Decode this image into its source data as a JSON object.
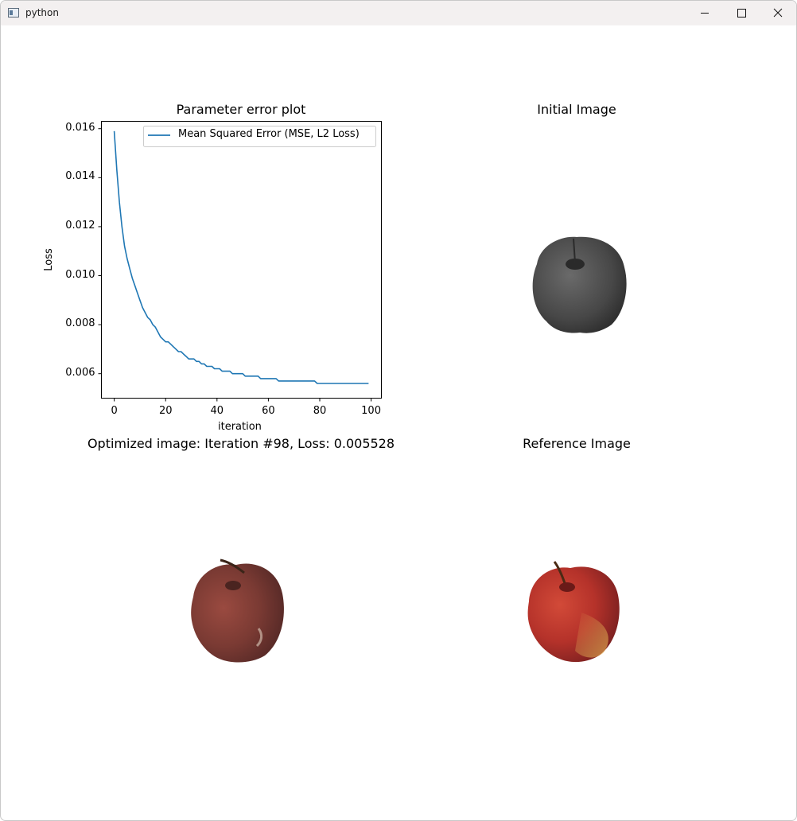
{
  "window": {
    "title": "python",
    "icons": [
      "app-icon",
      "minimize-icon",
      "maximize-icon",
      "close-icon"
    ]
  },
  "plots": {
    "loss_title": "Parameter error plot",
    "initial_title": "Initial Image",
    "optimized_title": "Optimized image: Iteration #98, Loss: 0.005528",
    "reference_title": "Reference Image"
  },
  "chart_data": {
    "type": "line",
    "title": "Parameter error plot",
    "xlabel": "iteration",
    "ylabel": "Loss",
    "xlim": [
      -5,
      104
    ],
    "ylim": [
      0.005,
      0.0163
    ],
    "x_ticks": [
      "0",
      "20",
      "40",
      "60",
      "80",
      "100"
    ],
    "y_ticks": [
      "0.016",
      "0.014",
      "0.012",
      "0.010",
      "0.008",
      "0.006"
    ],
    "legend_position": "upper-right",
    "grid": false,
    "series": [
      {
        "name": "Mean Squared Error (MSE, L2 Loss)",
        "color": "#1f77b4",
        "x": [
          0,
          1,
          2,
          3,
          4,
          5,
          6,
          7,
          8,
          9,
          10,
          11,
          12,
          13,
          14,
          15,
          16,
          17,
          18,
          19,
          20,
          21,
          22,
          23,
          24,
          25,
          26,
          27,
          28,
          29,
          30,
          31,
          32,
          33,
          34,
          35,
          36,
          37,
          38,
          39,
          40,
          41,
          42,
          43,
          44,
          45,
          46,
          47,
          48,
          49,
          50,
          51,
          52,
          53,
          54,
          55,
          56,
          57,
          58,
          59,
          60,
          61,
          62,
          63,
          64,
          65,
          66,
          67,
          68,
          69,
          70,
          71,
          72,
          73,
          74,
          75,
          76,
          77,
          78,
          79,
          80,
          81,
          82,
          83,
          84,
          85,
          86,
          87,
          88,
          89,
          90,
          91,
          92,
          93,
          94,
          95,
          96,
          97,
          98,
          99
        ],
        "y": [
          0.0159,
          0.0143,
          0.013,
          0.012,
          0.0112,
          0.0107,
          0.0103,
          0.0099,
          0.0096,
          0.0093,
          0.009,
          0.0087,
          0.0085,
          0.0083,
          0.0082,
          0.008,
          0.0079,
          0.0077,
          0.0075,
          0.0074,
          0.0073,
          0.0073,
          0.0072,
          0.0071,
          0.007,
          0.0069,
          0.0069,
          0.0068,
          0.0067,
          0.0066,
          0.0066,
          0.0066,
          0.0065,
          0.0065,
          0.0064,
          0.0064,
          0.0063,
          0.0063,
          0.0063,
          0.0062,
          0.0062,
          0.0062,
          0.0061,
          0.0061,
          0.0061,
          0.0061,
          0.006,
          0.006,
          0.006,
          0.006,
          0.006,
          0.0059,
          0.0059,
          0.0059,
          0.0059,
          0.0059,
          0.0059,
          0.0058,
          0.0058,
          0.0058,
          0.0058,
          0.0058,
          0.0058,
          0.0058,
          0.0057,
          0.0057,
          0.0057,
          0.0057,
          0.0057,
          0.0057,
          0.0057,
          0.0057,
          0.0057,
          0.0057,
          0.0057,
          0.0057,
          0.0057,
          0.0057,
          0.0057,
          0.0056,
          0.0056,
          0.0056,
          0.0056,
          0.0056,
          0.0056,
          0.0056,
          0.0056,
          0.0056,
          0.0056,
          0.0056,
          0.0056,
          0.0056,
          0.0056,
          0.0056,
          0.0056,
          0.0056,
          0.0056,
          0.0056,
          0.0056,
          0.0056
        ]
      }
    ]
  },
  "colors": {
    "line": "#1f77b4",
    "apple_gray": "#4a4a4a",
    "apple_red": "#b83a2c"
  }
}
